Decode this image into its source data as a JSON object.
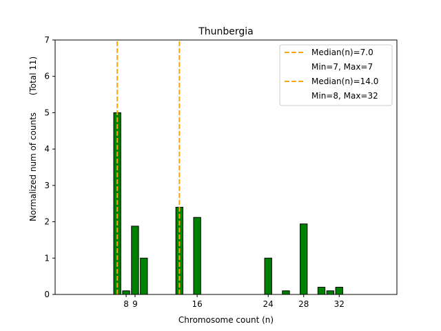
{
  "chart_data": {
    "type": "bar",
    "title": "Thunbergia",
    "xlabel": "Chromosome count (n)",
    "ylabel": "Normalized num of counts",
    "ylabel2": "(Total 11)",
    "xlim": [
      0,
      38.5
    ],
    "ylim": [
      0,
      7
    ],
    "xticks": [
      8,
      9,
      16,
      24,
      28,
      32
    ],
    "yticks": [
      0,
      1,
      2,
      3,
      4,
      5,
      6,
      7
    ],
    "bar_color": "#008000",
    "x": [
      7,
      8,
      9,
      10,
      14,
      16,
      24,
      26,
      28,
      30,
      31,
      32
    ],
    "values": [
      5.0,
      0.1,
      1.88,
      1.0,
      2.4,
      2.12,
      1.0,
      0.1,
      1.94,
      0.2,
      0.1,
      0.2
    ],
    "medians": [
      {
        "value": 7,
        "label": "Median(n)=7.0",
        "range_label": "Min=7, Max=7",
        "color": "#FFA500"
      },
      {
        "value": 14,
        "label": "Median(n)=14.0",
        "range_label": "Min=8, Max=32",
        "color": "#FFA500"
      }
    ],
    "legend_position": "top-right"
  }
}
